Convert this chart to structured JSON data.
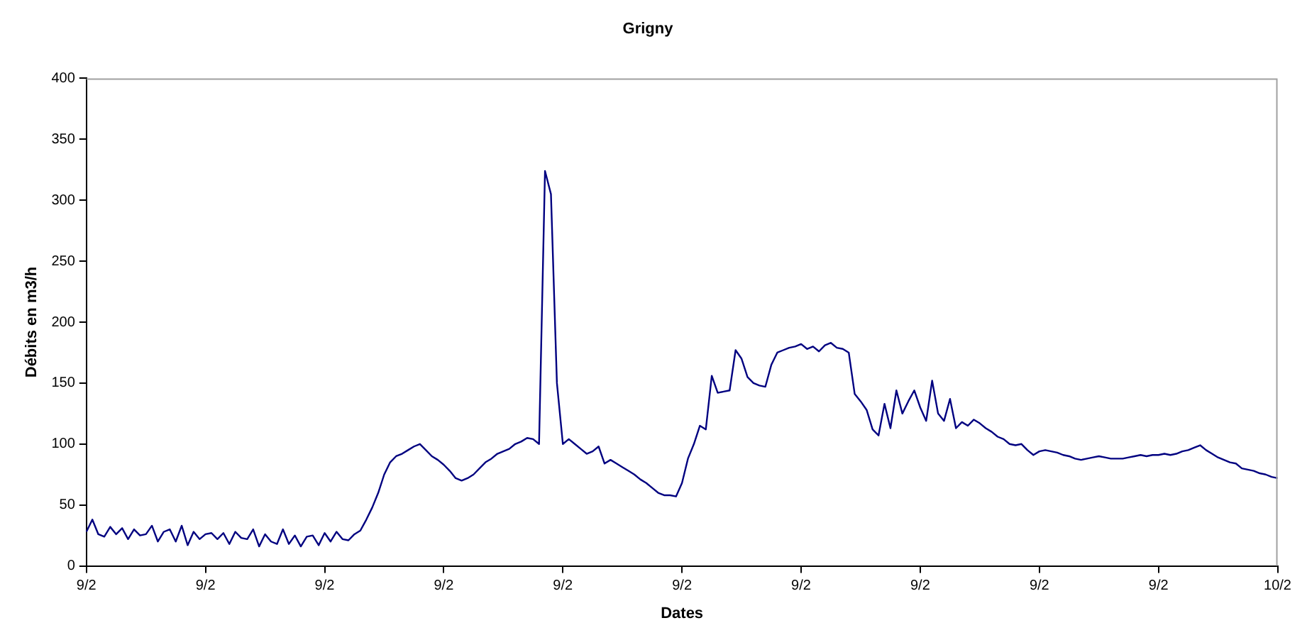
{
  "chart_data": {
    "type": "line",
    "title": "Grigny",
    "xlabel": "Dates",
    "ylabel": "Débits en m3/h",
    "categories": [
      "9/2",
      null,
      null,
      null,
      null,
      null,
      null,
      null,
      null,
      null,
      null,
      null,
      null,
      null,
      null,
      null,
      null,
      null,
      null,
      null,
      "9/2",
      null,
      null,
      null,
      null,
      null,
      null,
      null,
      null,
      null,
      null,
      null,
      null,
      null,
      null,
      null,
      null,
      null,
      null,
      null,
      "9/2",
      null,
      null,
      null,
      null,
      null,
      null,
      null,
      null,
      null,
      null,
      null,
      null,
      null,
      null,
      null,
      null,
      null,
      null,
      null,
      "9/2",
      null,
      null,
      null,
      null,
      null,
      null,
      null,
      null,
      null,
      null,
      null,
      null,
      null,
      null,
      null,
      null,
      null,
      null,
      null,
      "9/2",
      null,
      null,
      null,
      null,
      null,
      null,
      null,
      null,
      null,
      null,
      null,
      null,
      null,
      null,
      null,
      null,
      null,
      null,
      null,
      "9/2",
      null,
      null,
      null,
      null,
      null,
      null,
      null,
      null,
      null,
      null,
      null,
      null,
      null,
      null,
      null,
      null,
      null,
      null,
      null,
      "9/2",
      null,
      null,
      null,
      null,
      null,
      null,
      null,
      null,
      null,
      null,
      null,
      null,
      null,
      null,
      null,
      null,
      null,
      null,
      null,
      "9/2",
      null,
      null,
      null,
      null,
      null,
      null,
      null,
      null,
      null,
      null,
      null,
      null,
      null,
      null,
      null,
      null,
      null,
      null,
      null,
      "9/2",
      null,
      null,
      null,
      null,
      null,
      null,
      null,
      null,
      null,
      null,
      null,
      null,
      null,
      null,
      null,
      null,
      null,
      null,
      null,
      "9/2",
      null,
      null,
      null,
      null,
      null,
      null,
      null,
      null,
      null,
      null,
      null,
      null,
      null,
      null,
      null,
      null,
      null,
      null,
      null,
      "10/2"
    ],
    "ylim": [
      0,
      400
    ],
    "yticks": [
      0,
      50,
      100,
      150,
      200,
      250,
      300,
      350,
      400
    ],
    "grid": false,
    "legend": false,
    "marker": "none",
    "line_style": "solid",
    "series": [
      {
        "color": "#000080",
        "values": [
          28,
          38,
          26,
          24,
          32,
          26,
          31,
          22,
          30,
          25,
          26,
          33,
          20,
          28,
          30,
          20,
          33,
          17,
          28,
          22,
          26,
          27,
          22,
          27,
          18,
          28,
          23,
          22,
          30,
          16,
          26,
          20,
          18,
          30,
          18,
          25,
          16,
          24,
          25,
          17,
          27,
          20,
          28,
          22,
          21,
          26,
          29,
          38,
          48,
          60,
          75,
          85,
          90,
          92,
          95,
          98,
          100,
          95,
          90,
          87,
          83,
          78,
          72,
          70,
          72,
          75,
          80,
          85,
          88,
          92,
          94,
          96,
          100,
          102,
          105,
          104,
          100,
          324,
          305,
          150,
          100,
          104,
          100,
          96,
          92,
          94,
          98,
          84,
          87,
          84,
          81,
          78,
          75,
          71,
          68,
          64,
          60,
          58,
          58,
          57,
          68,
          88,
          100,
          115,
          112,
          156,
          142,
          143,
          144,
          177,
          170,
          155,
          150,
          148,
          147,
          165,
          175,
          177,
          179,
          180,
          182,
          178,
          180,
          176,
          181,
          183,
          179,
          178,
          175,
          141,
          135,
          128,
          112,
          107,
          133,
          113,
          144,
          125,
          135,
          144,
          130,
          119,
          152,
          125,
          119,
          137,
          113,
          118,
          115,
          120,
          117,
          113,
          110,
          106,
          104,
          100,
          99,
          100,
          95,
          91,
          94,
          95,
          94,
          93,
          91,
          90,
          88,
          87,
          88,
          89,
          90,
          89,
          88,
          88,
          88,
          89,
          90,
          91,
          90,
          91,
          91,
          92,
          91,
          92,
          94,
          95,
          97,
          99,
          95,
          92,
          89,
          87,
          85,
          84,
          80,
          79,
          78,
          76,
          75,
          73,
          72
        ]
      }
    ]
  }
}
